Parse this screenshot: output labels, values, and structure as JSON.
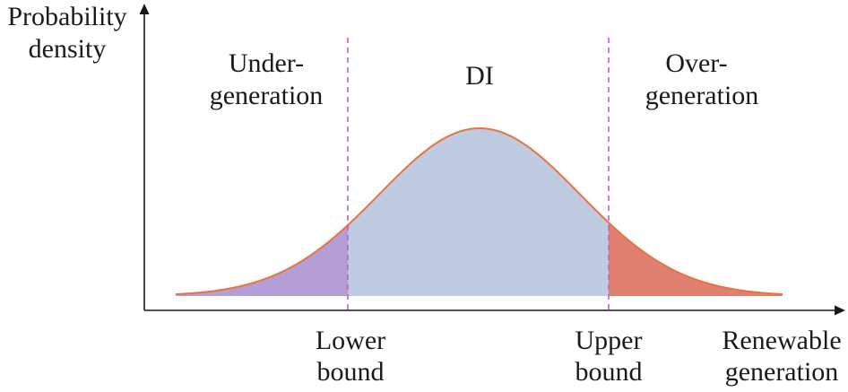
{
  "axes": {
    "y_label_line1": "Probability",
    "y_label_line2": "density",
    "x_label_line1": "Renewable",
    "x_label_line2": "generation"
  },
  "regions": {
    "under_line1": "Under-",
    "under_line2": "generation",
    "di": "DI",
    "over_line1": "Over-",
    "over_line2": "generation"
  },
  "bounds": {
    "lower_line1": "Lower",
    "lower_line2": "bound",
    "upper_line1": "Upper",
    "upper_line2": "bound"
  },
  "colors": {
    "curve": "#e8743b",
    "under_fill": "#b59ed6",
    "di_fill": "#bfcae3",
    "over_fill": "#e08070",
    "bound_line": "#c660c0",
    "axis": "#1a1a1a"
  }
}
